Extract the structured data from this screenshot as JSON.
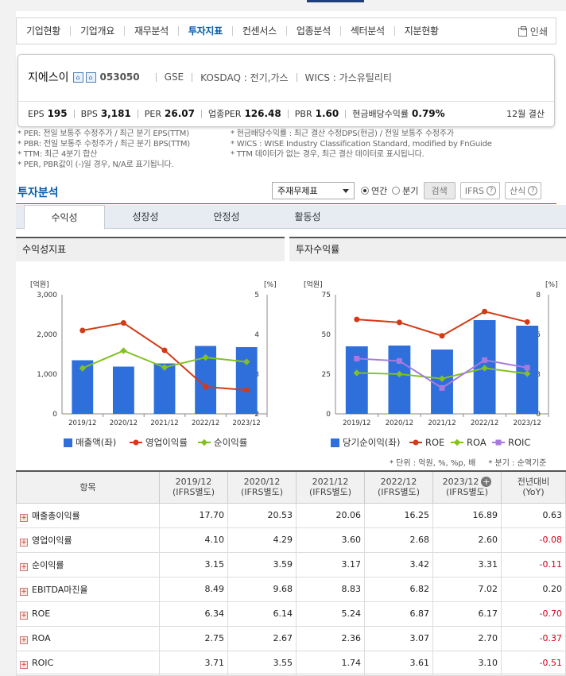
{
  "nav": {
    "tabs": [
      "기업현황",
      "기업개요",
      "재무분석",
      "투자지표",
      "컨센서스",
      "업종분석",
      "섹터분석",
      "지분현황"
    ],
    "active_index": 3,
    "print_label": "인쇄"
  },
  "company": {
    "name": "지에스이",
    "code": "053050",
    "exchange_code": "GSE",
    "market": "KOSDAQ : 전기,가스",
    "wics": "WICS : 가스유틸리티"
  },
  "metrics": [
    {
      "label": "EPS",
      "value": "195"
    },
    {
      "label": "BPS",
      "value": "3,181"
    },
    {
      "label": "PER",
      "value": "26.07"
    },
    {
      "label": "업종PER",
      "value": "126.48"
    },
    {
      "label": "PBR",
      "value": "1.60"
    },
    {
      "label": "현금배당수익률",
      "value": "0.79%"
    }
  ],
  "settlement": "12월 결산",
  "notes_left": [
    "* PER: 전일 보통주 수정주가 / 최근 분기 EPS(TTM)",
    "* PBR: 전일 보통주 수정주가 / 최근 분기 BPS(TTM)",
    "* TTM: 최근 4분기 합산",
    "* PER, PBR값이 (-)일 경우, N/A로 표기됩니다."
  ],
  "notes_right": [
    "* 현금배당수익률 : 최근 결산 수정DPS(현금) / 전일 보통주 수정주가",
    "* WICS : WISE Industry Classification Standard, modified by FnGuide",
    "* TTM 데이터가 없는 경우, 최근 결산 데이터로 표시됩니다."
  ],
  "section": {
    "title": "투자분석",
    "select_value": "주재무제표",
    "radio_annual": "연간",
    "radio_quarter": "분기",
    "search_button": "검색",
    "ifrs_button": "IFRS",
    "formula_button": "산식"
  },
  "subtabs": [
    "수익성",
    "성장성",
    "안정성",
    "활동성"
  ],
  "charts": {
    "left_title": "수익성지표",
    "right_title": "투자수익률",
    "unit_left": "[억원]",
    "unit_right": "[%]",
    "left_legend": [
      "매출액(좌)",
      "영업이익률",
      "순이익률"
    ],
    "right_legend": [
      "당기순이익(좌)",
      "ROE",
      "ROA",
      "ROIC"
    ]
  },
  "chart_data": [
    {
      "type": "bar",
      "title": "수익성지표",
      "categories": [
        "2019/12",
        "2020/12",
        "2021/12",
        "2022/12",
        "2023/12"
      ],
      "y_left_ticks": [
        "0",
        "1,000",
        "2,000",
        "3,000"
      ],
      "y_right_ticks": [
        "2",
        "3",
        "4",
        "5"
      ],
      "ylim_left": [
        0,
        3000
      ],
      "ylim_right": [
        2,
        5
      ],
      "bar_series": {
        "name": "매출액(좌)",
        "values": [
          1350,
          1190,
          1270,
          1710,
          1680
        ]
      },
      "line_series": [
        {
          "name": "영업이익률",
          "values": [
            4.1,
            4.29,
            3.6,
            2.68,
            2.6
          ]
        },
        {
          "name": "순이익률",
          "values": [
            3.15,
            3.59,
            3.17,
            3.42,
            3.31
          ]
        }
      ]
    },
    {
      "type": "bar",
      "title": "투자수익률",
      "categories": [
        "2019/12",
        "2020/12",
        "2021/12",
        "2022/12",
        "2023/12"
      ],
      "y_left_ticks": [
        "0",
        "25",
        "50",
        "75"
      ],
      "y_right_ticks": [
        "0",
        "3",
        "5",
        "8"
      ],
      "ylim_left": [
        0,
        75
      ],
      "ylim_right": [
        0,
        8
      ],
      "bar_series": {
        "name": "당기순이익(좌)",
        "values": [
          42.5,
          43,
          40.5,
          59,
          55.5
        ]
      },
      "line_series": [
        {
          "name": "ROE",
          "values": [
            6.34,
            6.14,
            5.24,
            6.87,
            6.17
          ]
        },
        {
          "name": "ROA",
          "values": [
            2.75,
            2.67,
            2.36,
            3.07,
            2.7
          ]
        },
        {
          "name": "ROIC",
          "values": [
            3.71,
            3.55,
            1.74,
            3.61,
            3.1
          ]
        }
      ]
    }
  ],
  "table_notes": {
    "unit": "* 단위 : 억원, %, %p, 배",
    "period": "* 분기 : 순액기준"
  },
  "table": {
    "item_header": "항목",
    "columns": [
      {
        "year": "2019/12",
        "basis": "(IFRS별도)"
      },
      {
        "year": "2020/12",
        "basis": "(IFRS별도)"
      },
      {
        "year": "2021/12",
        "basis": "(IFRS별도)"
      },
      {
        "year": "2022/12",
        "basis": "(IFRS별도)"
      },
      {
        "year": "2023/12",
        "basis": "(IFRS별도)"
      }
    ],
    "yoy_header": "전년대비",
    "yoy_sub": "(YoY)",
    "rows": [
      {
        "label": "매출총이익률",
        "values": [
          "17.70",
          "20.53",
          "20.06",
          "16.25",
          "16.89"
        ],
        "yoy": "0.63"
      },
      {
        "label": "영업이익률",
        "values": [
          "4.10",
          "4.29",
          "3.60",
          "2.68",
          "2.60"
        ],
        "yoy": "-0.08"
      },
      {
        "label": "순이익률",
        "values": [
          "3.15",
          "3.59",
          "3.17",
          "3.42",
          "3.31"
        ],
        "yoy": "-0.11"
      },
      {
        "label": "EBITDA마진율",
        "values": [
          "8.49",
          "9.68",
          "8.83",
          "6.82",
          "7.02"
        ],
        "yoy": "0.20"
      },
      {
        "label": "ROE",
        "values": [
          "6.34",
          "6.14",
          "5.24",
          "6.87",
          "6.17"
        ],
        "yoy": "-0.70"
      },
      {
        "label": "ROA",
        "values": [
          "2.75",
          "2.67",
          "2.36",
          "3.07",
          "2.70"
        ],
        "yoy": "-0.37"
      },
      {
        "label": "ROIC",
        "values": [
          "3.71",
          "3.55",
          "1.74",
          "3.61",
          "3.10"
        ],
        "yoy": "-0.51"
      }
    ]
  },
  "colors": {
    "bar": "#2f6fdc",
    "line_red": "#d33a15",
    "line_green": "#83c123",
    "line_purple": "#a77ae0",
    "accent": "#0a5ba8"
  }
}
